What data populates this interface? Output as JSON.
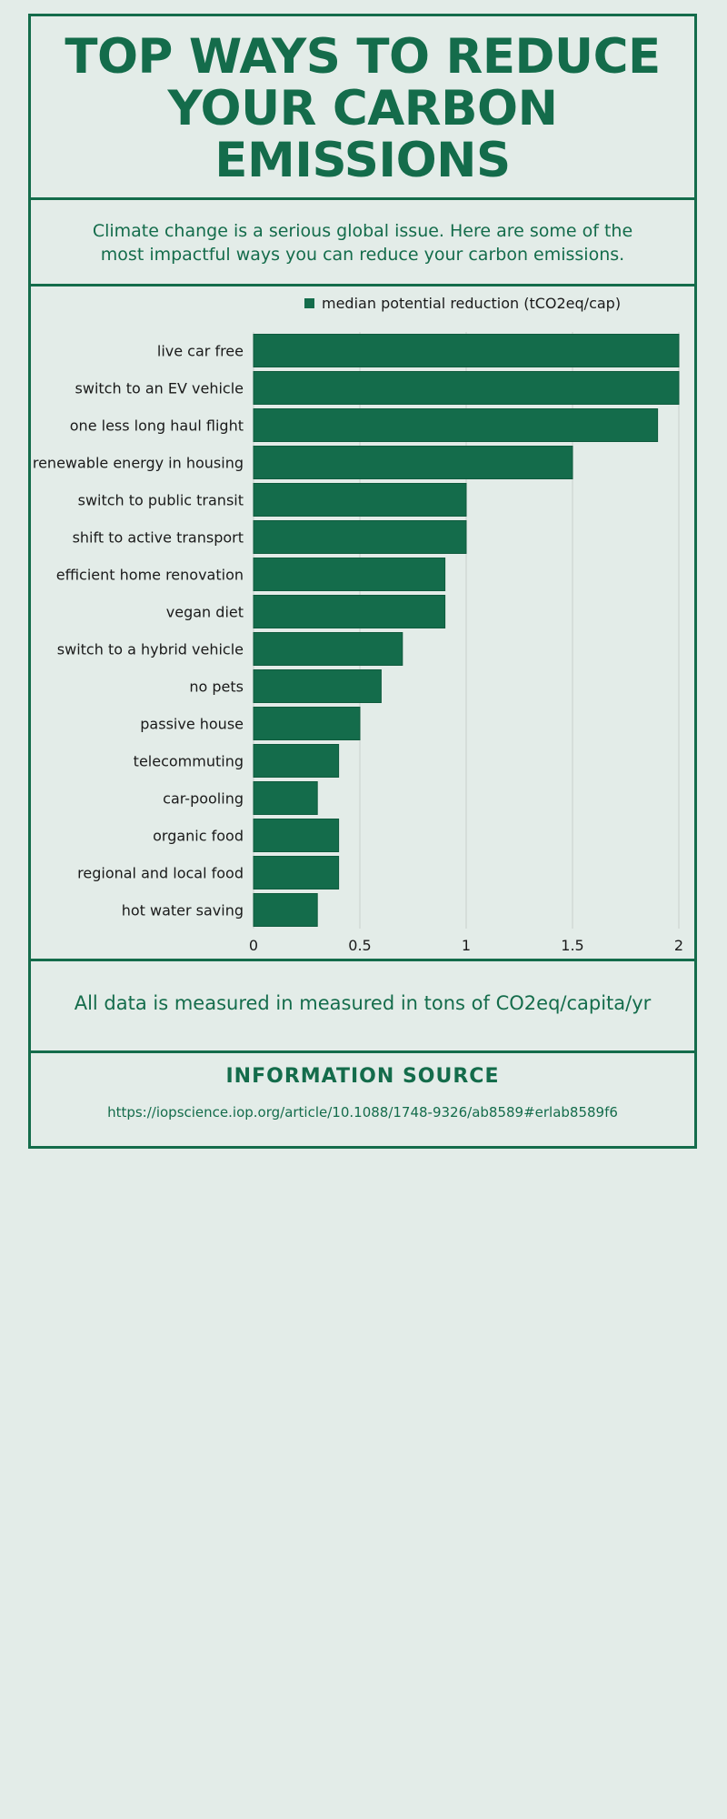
{
  "header": {
    "title": "TOP WAYS TO REDUCE YOUR CARBON EMISSIONS"
  },
  "intro": {
    "text": "Climate change is a serious global issue. Here are some of the most impactful ways you can reduce your carbon emissions."
  },
  "note": {
    "text": "All data is measured in measured in tons of CO2eq/capita/yr"
  },
  "source": {
    "heading": "INFORMATION SOURCE",
    "link": "https://iopscience.iop.org/article/10.1088/1748-9326/ab8589#erlab8589f6"
  },
  "colors": {
    "accent": "#146c4b",
    "background": "#e3ece8",
    "gridline": "#c9cfcc"
  },
  "chart_data": {
    "type": "bar",
    "orientation": "horizontal",
    "categories": [
      "live car free",
      "switch to an EV vehicle",
      "one less long haul flight",
      "renewable energy in housing",
      "switch to public transit",
      "shift to active transport",
      "efficient home renovation",
      "vegan diet",
      "switch to a hybrid vehicle",
      "no pets",
      "passive house",
      "telecommuting",
      "car-pooling",
      "organic food",
      "regional and local food",
      "hot water saving"
    ],
    "series": [
      {
        "name": "median potential reduction (tCO2eq/cap)",
        "values": [
          2.0,
          2.0,
          1.9,
          1.5,
          1.0,
          1.0,
          0.9,
          0.9,
          0.7,
          0.6,
          0.5,
          0.4,
          0.3,
          0.4,
          0.4,
          0.3
        ]
      }
    ],
    "xlim": [
      0,
      2
    ],
    "xticks": [
      "0",
      "0.5",
      "1",
      "1.5",
      "2"
    ],
    "grid": "vertical",
    "legend": "top"
  }
}
